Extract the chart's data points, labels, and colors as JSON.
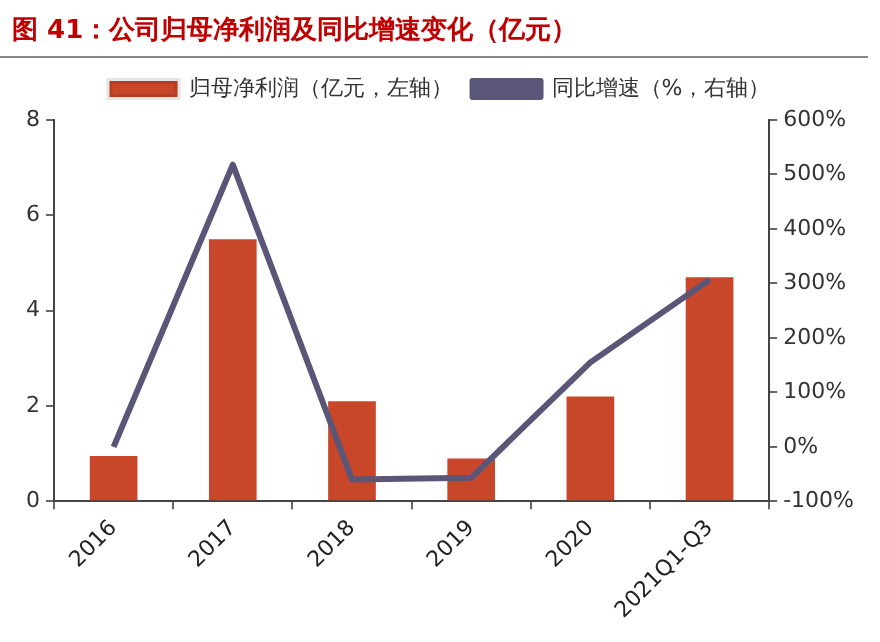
{
  "chart_data": {
    "type": "bar",
    "title": "图 41：公司归母净利润及同比增速变化（亿元）",
    "categories": [
      "2016",
      "2017",
      "2018",
      "2019",
      "2020",
      "2021Q1-Q3"
    ],
    "series": [
      {
        "name": "归母净利润（亿元，左轴）",
        "color": "#c8462a",
        "values": [
          0.95,
          5.5,
          2.1,
          0.9,
          2.2,
          4.7
        ]
      },
      {
        "name": "同比增速（%，右轴）",
        "type": "line",
        "axis": "y2",
        "color": "#5a5677",
        "values": [
          0,
          518,
          -60,
          -57,
          155,
          307
        ]
      }
    ],
    "ylim": [
      0,
      8
    ],
    "yticks": [
      0,
      2,
      4,
      6,
      8
    ],
    "y2lim": [
      -100,
      600
    ],
    "y2ticks": [
      {
        "value": -100,
        "label": "-100%"
      },
      {
        "value": 0,
        "label": "0%"
      },
      {
        "value": 100,
        "label": "100%"
      },
      {
        "value": 200,
        "label": "200%"
      },
      {
        "value": 300,
        "label": "300%"
      },
      {
        "value": 400,
        "label": "400%"
      },
      {
        "value": 500,
        "label": "500%"
      },
      {
        "value": 600,
        "label": "600%"
      }
    ],
    "grid": false,
    "legend": "top",
    "marker": "none",
    "line_style": "solid"
  }
}
